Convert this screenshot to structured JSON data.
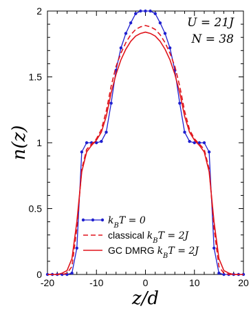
{
  "chart_data": {
    "type": "line",
    "xlabel": "z/d",
    "ylabel": "n(z)",
    "xlim": [
      -20,
      20
    ],
    "ylim": [
      0,
      2
    ],
    "xticks": [
      -20,
      -10,
      0,
      10,
      20
    ],
    "xtick_labels": [
      "-20",
      "-10",
      "0",
      "10",
      "20"
    ],
    "yticks": [
      0,
      0.5,
      1,
      1.5,
      2
    ],
    "ytick_labels": [
      "0",
      "0.5",
      "1",
      "1.5",
      "2"
    ],
    "annotations": [
      "U = 21J",
      "N = 38"
    ],
    "legend_position": "bottom-center",
    "series": [
      {
        "name": "k_B T = 0",
        "legend_parts": [
          {
            "math": "k"
          },
          {
            "math": "B",
            "sub": true
          },
          {
            "math": "T = 0"
          }
        ],
        "color": "#1f1fcf",
        "style": "solid-markers",
        "x": [
          -20,
          -19,
          -18,
          -17,
          -16,
          -15,
          -14,
          -13,
          -12,
          -11,
          -10,
          -9,
          -8,
          -7,
          -6,
          -5,
          -4,
          -3,
          -2,
          -1,
          0,
          1,
          2,
          3,
          4,
          5,
          6,
          7,
          8,
          9,
          10,
          11,
          12,
          13,
          14,
          15,
          16,
          17,
          18,
          19,
          20
        ],
        "y": [
          0,
          0,
          0,
          0,
          0,
          0.01,
          0.2,
          0.93,
          1.0,
          1.0,
          1.0,
          1.01,
          1.08,
          1.3,
          1.55,
          1.72,
          1.83,
          1.91,
          1.98,
          2.0,
          2.0,
          2.0,
          1.98,
          1.91,
          1.83,
          1.72,
          1.55,
          1.3,
          1.08,
          1.01,
          1.0,
          1.0,
          1.0,
          0.93,
          0.2,
          0.01,
          0,
          0,
          0,
          0,
          0
        ]
      },
      {
        "name": "classical k_B T = 2J",
        "legend_parts": [
          {
            "text": "classical "
          },
          {
            "math": "k"
          },
          {
            "math": "B",
            "sub": true
          },
          {
            "math": "T = 2J"
          }
        ],
        "color": "#e0141b",
        "style": "dashed",
        "x": [
          -20,
          -19,
          -18,
          -17,
          -16,
          -15,
          -14,
          -13,
          -12,
          -11,
          -10,
          -9,
          -8,
          -7,
          -6,
          -5,
          -4,
          -3,
          -2,
          -1,
          0,
          1,
          2,
          3,
          4,
          5,
          6,
          7,
          8,
          9,
          10,
          11,
          12,
          13,
          14,
          15,
          16,
          17,
          18,
          19,
          20
        ],
        "y": [
          0,
          0,
          0,
          0,
          0.01,
          0.06,
          0.35,
          0.8,
          0.95,
          0.99,
          1.03,
          1.1,
          1.24,
          1.43,
          1.58,
          1.68,
          1.76,
          1.82,
          1.86,
          1.88,
          1.89,
          1.88,
          1.86,
          1.82,
          1.76,
          1.68,
          1.58,
          1.43,
          1.24,
          1.1,
          1.03,
          0.99,
          0.95,
          0.8,
          0.35,
          0.06,
          0.01,
          0,
          0,
          0,
          0
        ]
      },
      {
        "name": "GC DMRG k_B T = 2J",
        "legend_parts": [
          {
            "text": "GC DMRG "
          },
          {
            "math": "k"
          },
          {
            "math": "B",
            "sub": true
          },
          {
            "math": "T = 2J"
          }
        ],
        "color": "#e0141b",
        "style": "solid",
        "x": [
          -20,
          -19,
          -18,
          -17,
          -16,
          -15,
          -14,
          -13,
          -12,
          -11,
          -10,
          -9,
          -8,
          -7,
          -6,
          -5,
          -4,
          -3,
          -2,
          -1,
          0,
          1,
          2,
          3,
          4,
          5,
          6,
          7,
          8,
          9,
          10,
          11,
          12,
          13,
          14,
          15,
          16,
          17,
          18,
          19,
          20
        ],
        "y": [
          0,
          0,
          0,
          0.01,
          0.03,
          0.12,
          0.4,
          0.78,
          0.93,
          0.98,
          1.02,
          1.08,
          1.2,
          1.38,
          1.52,
          1.63,
          1.71,
          1.77,
          1.81,
          1.83,
          1.84,
          1.83,
          1.81,
          1.77,
          1.71,
          1.63,
          1.52,
          1.38,
          1.2,
          1.08,
          1.02,
          0.98,
          0.93,
          0.78,
          0.4,
          0.12,
          0.03,
          0.01,
          0,
          0,
          0
        ]
      }
    ]
  }
}
